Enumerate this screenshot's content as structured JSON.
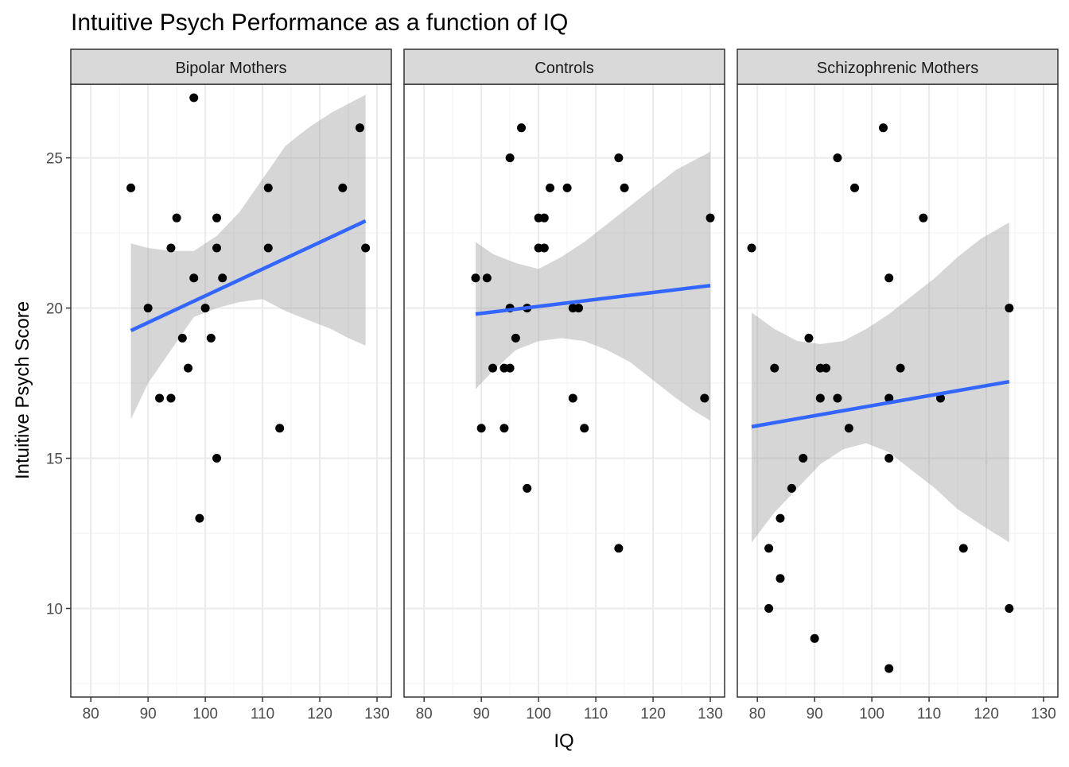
{
  "chart_data": {
    "type": "scatter",
    "title": "Intuitive Psych Performance as a function of IQ",
    "xlabel": "IQ",
    "ylabel": "Intuitive Psych Score",
    "xlim": [
      76.5,
      132.5
    ],
    "ylim": [
      7.05,
      27.45
    ],
    "x_ticks": [
      80,
      90,
      100,
      110,
      120,
      130
    ],
    "y_ticks": [
      10,
      15,
      20,
      25
    ],
    "grid": true,
    "colors": {
      "point": "#000000",
      "line": "#3366FF",
      "band": "#999999",
      "strip": "#D9D9D9",
      "grid": "#EBEBEB"
    },
    "panels": [
      {
        "label": "Bipolar Mothers",
        "points": [
          [
            87,
            24
          ],
          [
            90,
            20
          ],
          [
            92,
            17
          ],
          [
            94,
            22
          ],
          [
            94,
            17
          ],
          [
            95,
            23
          ],
          [
            96,
            19
          ],
          [
            97,
            18
          ],
          [
            98,
            27
          ],
          [
            98,
            21
          ],
          [
            99,
            13
          ],
          [
            100,
            20
          ],
          [
            101,
            19
          ],
          [
            102,
            23
          ],
          [
            102,
            22
          ],
          [
            102,
            15
          ],
          [
            103,
            21
          ],
          [
            111,
            24
          ],
          [
            111,
            22
          ],
          [
            113,
            16
          ],
          [
            124,
            24
          ],
          [
            127,
            26
          ],
          [
            128,
            22
          ]
        ],
        "fit": {
          "x": [
            87,
            128
          ],
          "y": [
            19.25,
            22.9
          ]
        },
        "band": [
          [
            87,
            16.3,
            22.15
          ],
          [
            90,
            17.5,
            22.0
          ],
          [
            94,
            18.6,
            21.9
          ],
          [
            98,
            19.7,
            21.9
          ],
          [
            102,
            20.0,
            22.4
          ],
          [
            106,
            20.2,
            23.2
          ],
          [
            110,
            20.3,
            24.3
          ],
          [
            114,
            19.9,
            25.4
          ],
          [
            118,
            19.6,
            26.0
          ],
          [
            122,
            19.3,
            26.5
          ],
          [
            125,
            19.0,
            26.8
          ],
          [
            128,
            18.75,
            27.1
          ]
        ]
      },
      {
        "label": "Controls",
        "points": [
          [
            89,
            21
          ],
          [
            90,
            16
          ],
          [
            91,
            21
          ],
          [
            92,
            18
          ],
          [
            94,
            16
          ],
          [
            94,
            18
          ],
          [
            95,
            25
          ],
          [
            95,
            20
          ],
          [
            95,
            18
          ],
          [
            96,
            19
          ],
          [
            97,
            26
          ],
          [
            98,
            20
          ],
          [
            98,
            14
          ],
          [
            100,
            23
          ],
          [
            100,
            22
          ],
          [
            101,
            23
          ],
          [
            101,
            22
          ],
          [
            102,
            24
          ],
          [
            105,
            24
          ],
          [
            106,
            20
          ],
          [
            106,
            17
          ],
          [
            107,
            20
          ],
          [
            108,
            16
          ],
          [
            114,
            25
          ],
          [
            114,
            12
          ],
          [
            115,
            24
          ],
          [
            129,
            17
          ],
          [
            130,
            23
          ]
        ],
        "fit": {
          "x": [
            89,
            130
          ],
          "y": [
            19.8,
            20.75
          ]
        },
        "band": [
          [
            89,
            17.3,
            22.2
          ],
          [
            92,
            17.9,
            21.8
          ],
          [
            96,
            18.6,
            21.5
          ],
          [
            100,
            18.9,
            21.3
          ],
          [
            104,
            19.0,
            21.7
          ],
          [
            108,
            18.9,
            22.2
          ],
          [
            112,
            18.6,
            22.8
          ],
          [
            116,
            18.2,
            23.4
          ],
          [
            120,
            17.6,
            24.0
          ],
          [
            124,
            17.0,
            24.6
          ],
          [
            127,
            16.6,
            24.9
          ],
          [
            130,
            16.25,
            25.2
          ]
        ]
      },
      {
        "label": "Schizophrenic Mothers",
        "points": [
          [
            79,
            22
          ],
          [
            82,
            12
          ],
          [
            82,
            10
          ],
          [
            83,
            18
          ],
          [
            84,
            13
          ],
          [
            84,
            11
          ],
          [
            86,
            14
          ],
          [
            88,
            15
          ],
          [
            89,
            19
          ],
          [
            90,
            9
          ],
          [
            91,
            18
          ],
          [
            91,
            17
          ],
          [
            92,
            18
          ],
          [
            94,
            25
          ],
          [
            94,
            17
          ],
          [
            96,
            16
          ],
          [
            97,
            24
          ],
          [
            102,
            26
          ],
          [
            103,
            21
          ],
          [
            103,
            17
          ],
          [
            103,
            15
          ],
          [
            103,
            8
          ],
          [
            105,
            18
          ],
          [
            109,
            23
          ],
          [
            112,
            17
          ],
          [
            116,
            12
          ],
          [
            124,
            20
          ],
          [
            124,
            10
          ]
        ],
        "fit": {
          "x": [
            79,
            124
          ],
          "y": [
            16.05,
            17.55
          ]
        },
        "band": [
          [
            79,
            12.2,
            19.85
          ],
          [
            83,
            13.2,
            19.3
          ],
          [
            87,
            14.0,
            18.9
          ],
          [
            91,
            14.8,
            18.8
          ],
          [
            95,
            15.3,
            18.9
          ],
          [
            99,
            15.5,
            19.3
          ],
          [
            103,
            15.2,
            19.8
          ],
          [
            107,
            14.6,
            20.4
          ],
          [
            111,
            14.0,
            21.0
          ],
          [
            115,
            13.3,
            21.7
          ],
          [
            119,
            12.8,
            22.3
          ],
          [
            124,
            12.2,
            22.85
          ]
        ]
      }
    ]
  }
}
